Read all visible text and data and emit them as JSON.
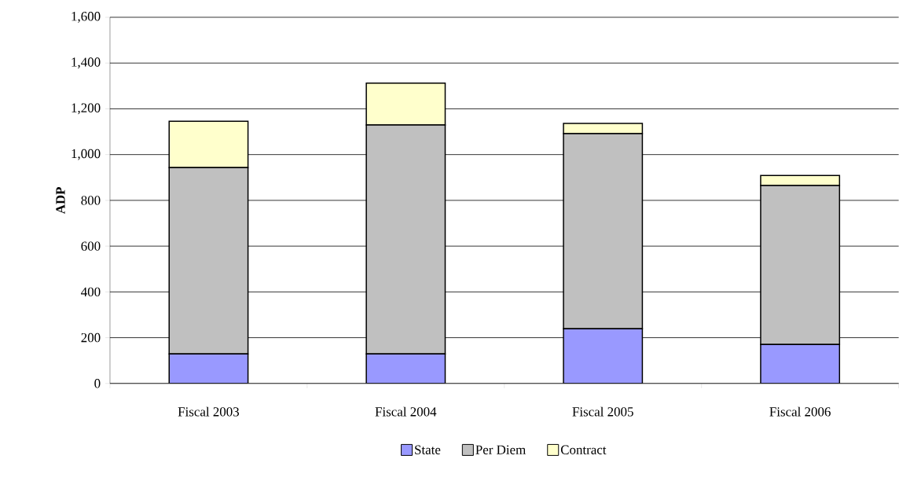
{
  "chart_data": {
    "type": "bar",
    "stacked": true,
    "ylabel": "ADP",
    "categories": [
      "Fiscal 2003",
      "Fiscal 2004",
      "Fiscal 2005",
      "Fiscal 2006"
    ],
    "series": [
      {
        "name": "State",
        "color": "#9999ff",
        "values": [
          129,
          129,
          239,
          170
        ]
      },
      {
        "name": "Per Diem",
        "color": "#c0c0c0",
        "values": [
          814,
          1000,
          853,
          695
        ]
      },
      {
        "name": "Contract",
        "color": "#ffffcc",
        "values": [
          203,
          183,
          44,
          44
        ]
      }
    ],
    "ylim": [
      0,
      1600
    ],
    "yticks": [
      0,
      200,
      400,
      600,
      800,
      {
        "value": 1000,
        "label": "1,000"
      },
      {
        "value": 1200,
        "label": "1,200"
      },
      {
        "value": 1400,
        "label": "1,400"
      },
      {
        "value": 1600,
        "label": "1,600"
      }
    ],
    "grid": "y",
    "legend": "bottom"
  }
}
